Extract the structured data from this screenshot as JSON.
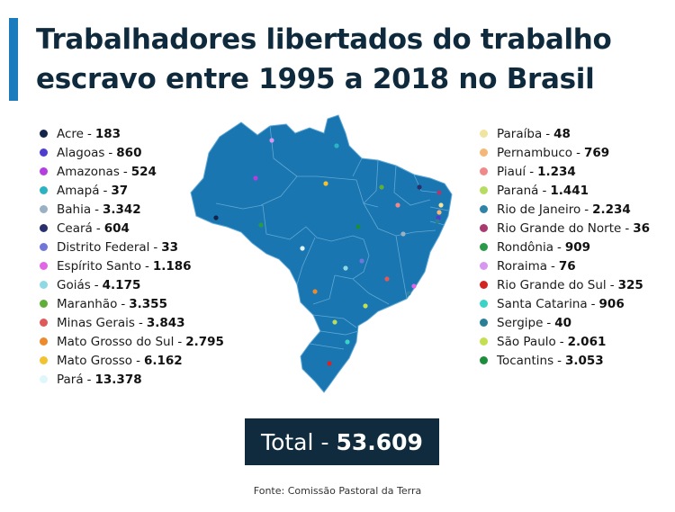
{
  "title": {
    "line1": "Trabalhadores libertados do trabalho",
    "line2": "escravo entre 1995 a 2018 no Brasil"
  },
  "colors": {
    "accent_bar": "#1a7bbd",
    "map_fill": "#1a76b0",
    "map_border": "#5fa8d6",
    "total_bg": "#0f2b3d"
  },
  "legend": {
    "left": [
      {
        "state": "Acre",
        "value": "183",
        "color": "#14234b"
      },
      {
        "state": "Alagoas",
        "value": "860",
        "color": "#4e3ecf"
      },
      {
        "state": "Amazonas",
        "value": "524",
        "color": "#b43ee0"
      },
      {
        "state": "Amapá",
        "value": "37",
        "color": "#2bb3c4"
      },
      {
        "state": "Bahia",
        "value": "3.342",
        "color": "#9ab0c4"
      },
      {
        "state": "Ceará",
        "value": "604",
        "color": "#2a2f6e"
      },
      {
        "state": "Distrito Federal",
        "value": "33",
        "color": "#6f77d8"
      },
      {
        "state": "Espírito Santo",
        "value": "1.186",
        "color": "#e066e6"
      },
      {
        "state": "Goiás",
        "value": "4.175",
        "color": "#8fd9e4"
      },
      {
        "state": "Maranhão",
        "value": "3.355",
        "color": "#5fae3a"
      },
      {
        "state": "Minas Gerais",
        "value": "3.843",
        "color": "#e05a5a"
      },
      {
        "state": "Mato Grosso do Sul",
        "value": "2.795",
        "color": "#ec8a2e"
      },
      {
        "state": "Mato Grosso",
        "value": "6.162",
        "color": "#f3c232"
      },
      {
        "state": "Pará",
        "value": "13.378",
        "color": "#dff6fb"
      }
    ],
    "right": [
      {
        "state": "Paraíba",
        "value": "48",
        "color": "#f1e3a0"
      },
      {
        "state": "Pernambuco",
        "value": "769",
        "color": "#f3b878"
      },
      {
        "state": "Piauí",
        "value": "1.234",
        "color": "#f08a8a"
      },
      {
        "state": "Paraná",
        "value": "1.441",
        "color": "#b8dc62"
      },
      {
        "state": "Rio de Janeiro",
        "value": "2.234",
        "color": "#2f83a6"
      },
      {
        "state": "Rio Grande do Norte",
        "value": "36",
        "color": "#a93a70"
      },
      {
        "state": "Rondônia",
        "value": "909",
        "color": "#2a9a48"
      },
      {
        "state": "Roraima",
        "value": "76",
        "color": "#d796ef"
      },
      {
        "state": "Rio Grande do Sul",
        "value": "325",
        "color": "#d42525"
      },
      {
        "state": "Santa Catarina",
        "value": "906",
        "color": "#3bd2c7"
      },
      {
        "state": "Sergipe",
        "value": "40",
        "color": "#2a7f97"
      },
      {
        "state": "São Paulo",
        "value": "2.061",
        "color": "#c4e050"
      },
      {
        "state": "Tocantins",
        "value": "3.053",
        "color": "#1d8d3c"
      }
    ]
  },
  "total": {
    "label": "Total",
    "separator": "-",
    "value": "53.609"
  },
  "source": "Fonte: Comissão Pastoral da Terra"
}
